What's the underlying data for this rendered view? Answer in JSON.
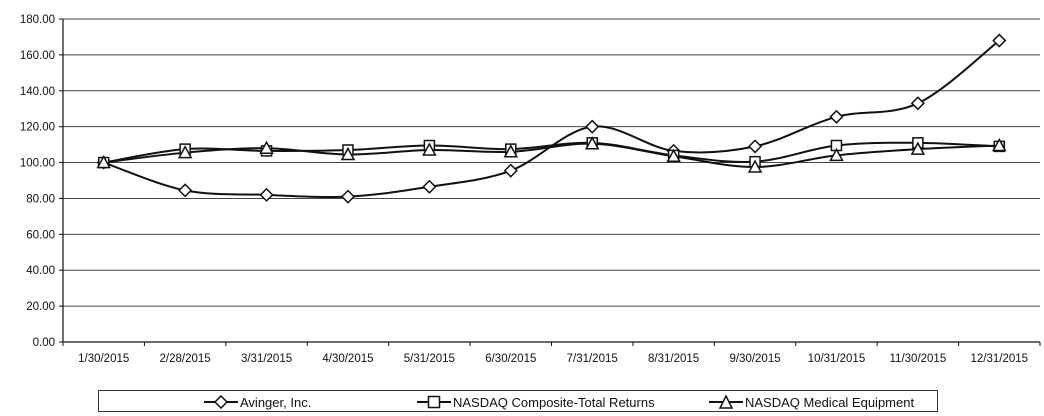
{
  "chart_data": {
    "type": "line",
    "title": "",
    "xlabel": "",
    "ylabel": "",
    "ylim": [
      0,
      180
    ],
    "yticks": [
      "0.00",
      "20.00",
      "40.00",
      "60.00",
      "80.00",
      "100.00",
      "120.00",
      "140.00",
      "160.00",
      "180.00"
    ],
    "grid": true,
    "legend_position": "bottom",
    "categories": [
      "1/30/2015",
      "2/28/2015",
      "3/31/2015",
      "4/30/2015",
      "5/31/2015",
      "6/30/2015",
      "7/31/2015",
      "8/31/2015",
      "9/30/2015",
      "10/31/2015",
      "11/30/2015",
      "12/31/2015"
    ],
    "series": [
      {
        "name": "Avinger, Inc.",
        "marker": "diamond",
        "values": [
          100,
          84.5,
          82,
          81,
          86.5,
          95.5,
          120,
          106.5,
          109,
          125.5,
          133,
          168
        ]
      },
      {
        "name": "NASDAQ Composite-Total Returns",
        "marker": "square",
        "values": [
          100,
          107.5,
          106.5,
          107,
          109.5,
          107.5,
          111,
          104,
          100.5,
          109.5,
          111,
          109
        ]
      },
      {
        "name": "NASDAQ Medical Equipment",
        "marker": "triangle",
        "values": [
          100,
          105.5,
          108,
          104.5,
          107,
          106,
          110.5,
          103.5,
          97.5,
          104,
          107.5,
          109.5
        ]
      }
    ]
  }
}
